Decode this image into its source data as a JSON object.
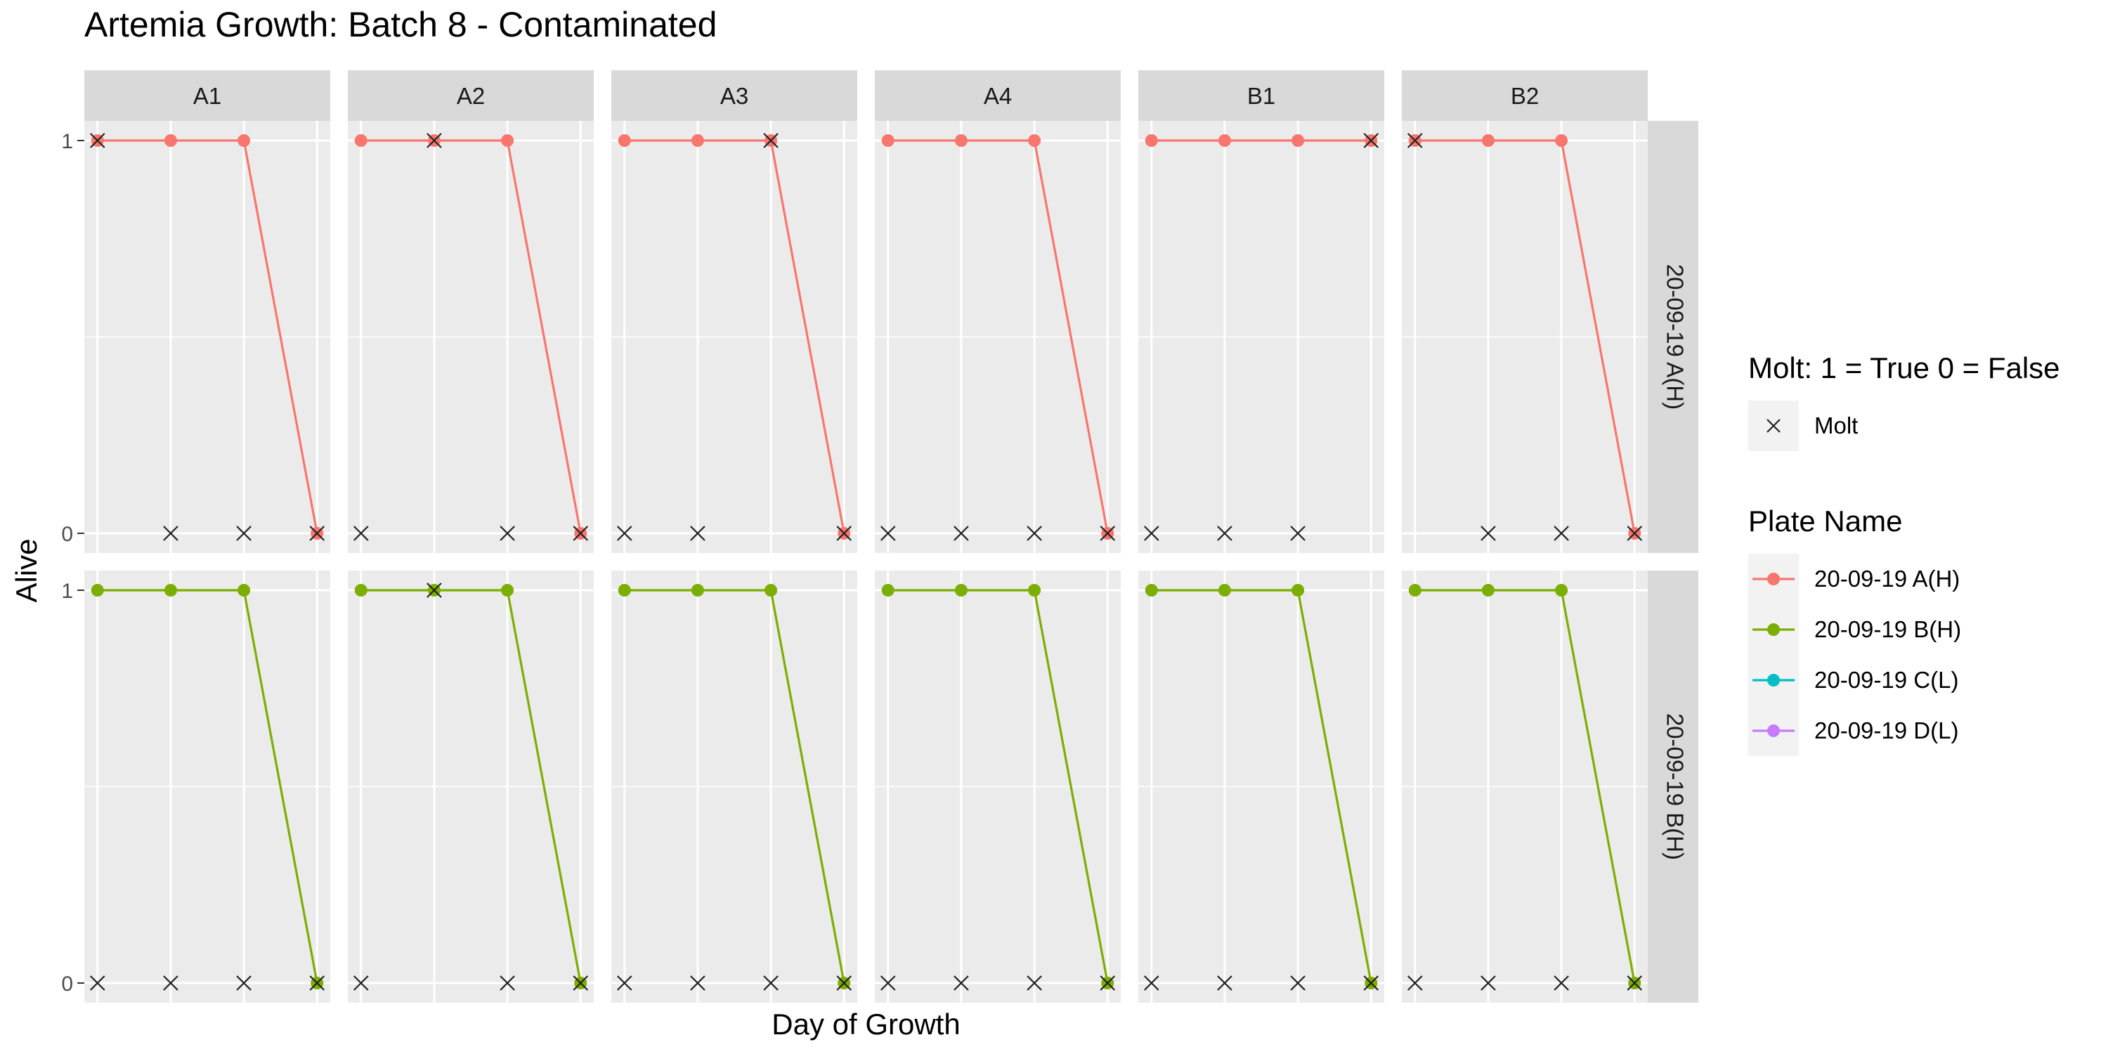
{
  "chart_data": {
    "type": "line",
    "title": "Artemia Growth: Batch 8 - Contaminated",
    "xlabel": "Day of Growth",
    "ylabel": "Alive",
    "ylim": [
      0,
      1
    ],
    "y_ticks": [
      "0",
      "1"
    ],
    "x": [
      1,
      2,
      3,
      4
    ],
    "facet_columns": [
      "A1",
      "A2",
      "A3",
      "A4",
      "B1",
      "B2"
    ],
    "facet_rows": [
      "20-09-19 A(H)",
      "20-09-19 B(H)"
    ],
    "grid": true,
    "series": [
      {
        "name": "20-09-19 A(H)",
        "color": "#F8766D",
        "panels": {
          "A1": {
            "alive": [
              1,
              1,
              1,
              0
            ],
            "molt": [
              1,
              0,
              0,
              0
            ]
          },
          "A2": {
            "alive": [
              1,
              1,
              1,
              0
            ],
            "molt": [
              0,
              1,
              0,
              0
            ]
          },
          "A3": {
            "alive": [
              1,
              1,
              1,
              0
            ],
            "molt": [
              0,
              0,
              1,
              0
            ]
          },
          "A4": {
            "alive": [
              1,
              1,
              1,
              0
            ],
            "molt": [
              0,
              0,
              0,
              0
            ]
          },
          "B1": {
            "alive": [
              1,
              1,
              1,
              1
            ],
            "molt": [
              0,
              0,
              0,
              1
            ]
          },
          "B2": {
            "alive": [
              1,
              1,
              1,
              0
            ],
            "molt": [
              1,
              0,
              0,
              0
            ]
          }
        }
      },
      {
        "name": "20-09-19 B(H)",
        "color": "#7CAE00",
        "panels": {
          "A1": {
            "alive": [
              1,
              1,
              1,
              0
            ],
            "molt": [
              0,
              0,
              0,
              0
            ]
          },
          "A2": {
            "alive": [
              1,
              1,
              1,
              0
            ],
            "molt": [
              0,
              1,
              0,
              0
            ]
          },
          "A3": {
            "alive": [
              1,
              1,
              1,
              0
            ],
            "molt": [
              0,
              0,
              0,
              0
            ]
          },
          "A4": {
            "alive": [
              1,
              1,
              1,
              0
            ],
            "molt": [
              0,
              0,
              0,
              0
            ]
          },
          "B1": {
            "alive": [
              1,
              1,
              1,
              0
            ],
            "molt": [
              0,
              0,
              0,
              0
            ]
          },
          "B2": {
            "alive": [
              1,
              1,
              1,
              0
            ],
            "molt": [
              0,
              0,
              0,
              0
            ]
          }
        }
      }
    ],
    "legend": {
      "placement": "right",
      "molt": {
        "title": "Molt: 1 = True 0 = False",
        "label": "Molt"
      },
      "plate": {
        "title": "Plate Name",
        "items": [
          {
            "name": "20-09-19 A(H)",
            "color": "#F8766D"
          },
          {
            "name": "20-09-19 B(H)",
            "color": "#7CAE00"
          },
          {
            "name": "20-09-19 C(L)",
            "color": "#00BFC4"
          },
          {
            "name": "20-09-19 D(L)",
            "color": "#C77CFF"
          }
        ]
      }
    }
  }
}
